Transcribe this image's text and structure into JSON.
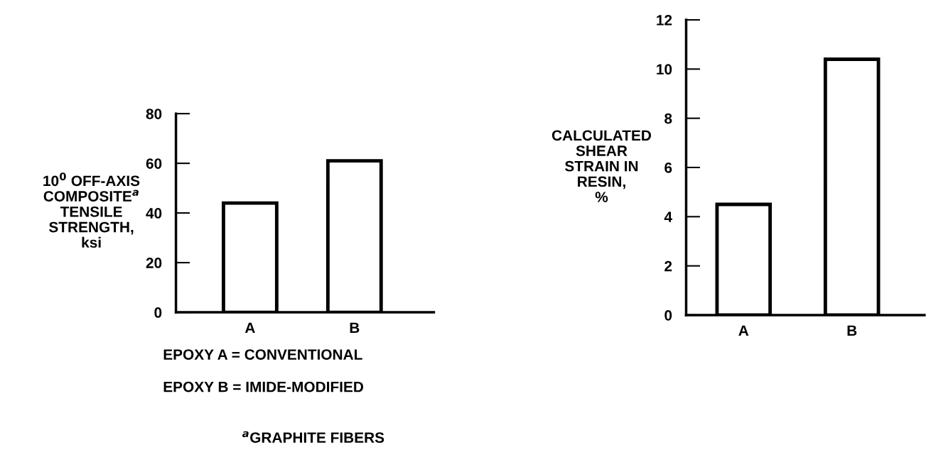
{
  "chart_data": [
    {
      "type": "bar",
      "ylabel": "10$^{0}$ OFF-AXIS\nCOMPOSITE$^{a}$\nTENSILE\nSTRENGTH,\nksi",
      "categories": [
        "A",
        "B"
      ],
      "values": [
        44,
        61
      ],
      "color": "#ffffff",
      "ylim": [
        0,
        80
      ],
      "yticks": [
        0,
        20,
        40,
        60,
        80
      ],
      "grid": false,
      "annotations": [
        "EPOXY A = CONVENTIONAL",
        "EPOXY B = IMIDE-MODIFIED",
        "$^{a}$GRAPHITE FIBERS"
      ]
    },
    {
      "type": "bar",
      "ylabel": "CALCULATED\nSHEAR\nSTRAIN IN\nRESIN,\n%",
      "categories": [
        "A",
        "B"
      ],
      "values": [
        4.5,
        10.4
      ],
      "color": "#ffffff",
      "ylim": [
        0,
        12
      ],
      "yticks": [
        0,
        2,
        4,
        6,
        8,
        10,
        12
      ],
      "grid": false
    }
  ]
}
